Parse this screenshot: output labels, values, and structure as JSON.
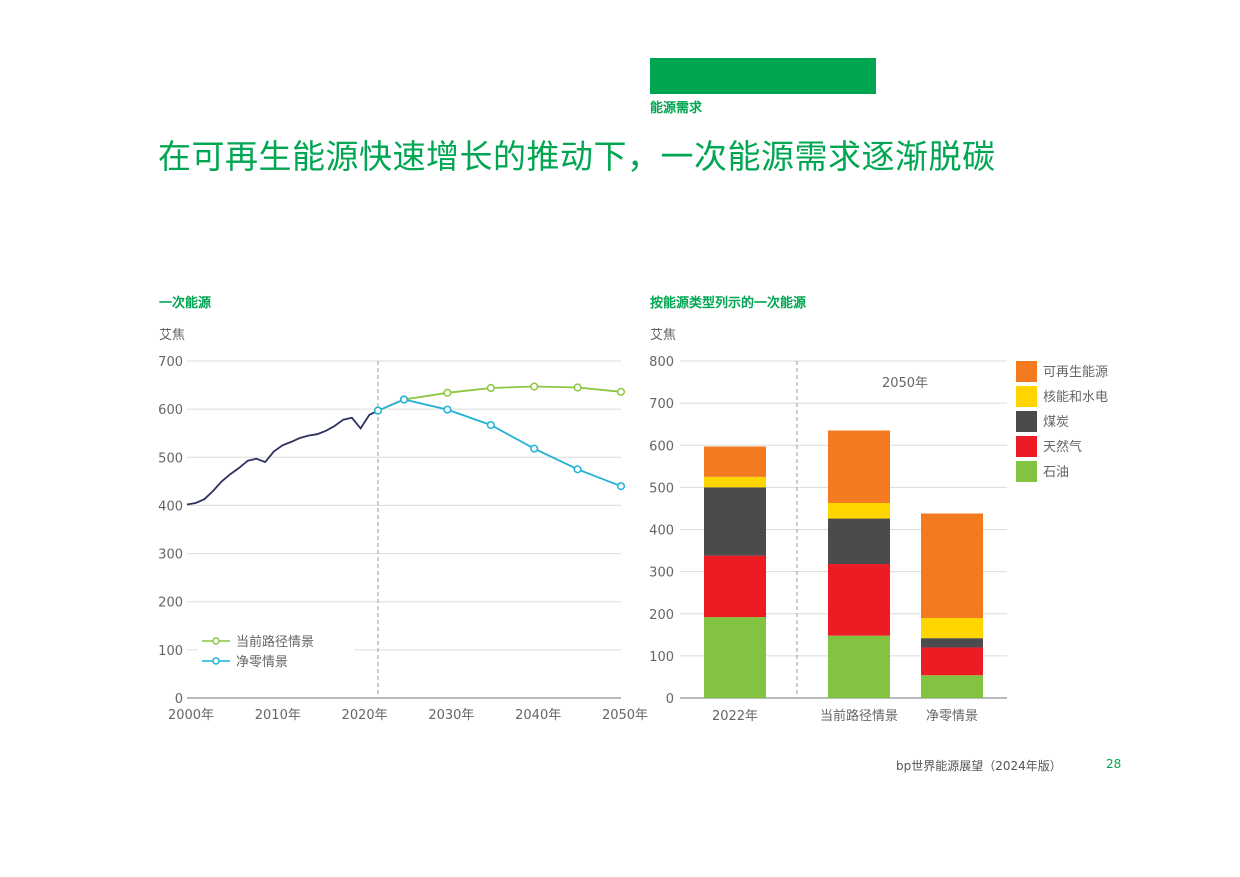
{
  "header": {
    "section": "能源需求",
    "title": "在可再生能源快速增长的推动下，一次能源需求逐渐脱碳"
  },
  "footer": {
    "source": "bp世界能源展望（2024年版）",
    "page": "28"
  },
  "colors": {
    "brand": "#00a651",
    "history": "#2e3162",
    "current": "#8dc63f",
    "netzero": "#1fb1d6",
    "renewables": "#f47a20",
    "nuclear_hydro": "#ffd500",
    "coal": "#4b4b4d",
    "gas": "#ed1c24",
    "oil": "#82c341"
  },
  "chart_data": [
    {
      "type": "line",
      "title": "一次能源",
      "ylabel": "艾焦",
      "ylim": [
        0,
        700
      ],
      "yticks": [
        0,
        100,
        200,
        300,
        400,
        500,
        600,
        700
      ],
      "xlim": [
        2000,
        2050
      ],
      "xticks": [
        "2000年",
        "2010年",
        "2020年",
        "2030年",
        "2040年",
        "2050年"
      ],
      "divider_x": 2022,
      "grid": true,
      "legend": "bottom-left",
      "history": {
        "x": [
          2000,
          2001,
          2002,
          2003,
          2004,
          2005,
          2006,
          2007,
          2008,
          2009,
          2010,
          2011,
          2012,
          2013,
          2014,
          2015,
          2016,
          2017,
          2018,
          2019,
          2020,
          2021,
          2022
        ],
        "y": [
          402,
          405,
          413,
          430,
          450,
          465,
          478,
          493,
          497,
          490,
          512,
          525,
          532,
          540,
          545,
          548,
          555,
          565,
          578,
          582,
          560,
          588,
          597
        ]
      },
      "series": [
        {
          "name": "当前路径情景",
          "x": [
            2022,
            2025,
            2030,
            2035,
            2040,
            2045,
            2050
          ],
          "y": [
            597,
            620,
            634,
            644,
            647,
            645,
            636
          ]
        },
        {
          "name": "净零情景",
          "x": [
            2022,
            2025,
            2030,
            2035,
            2040,
            2045,
            2050
          ],
          "y": [
            597,
            620,
            599,
            567,
            518,
            475,
            440
          ]
        }
      ]
    },
    {
      "type": "bar",
      "stacked": true,
      "title": "按能源类型列示的一次能源",
      "ylabel": "艾焦",
      "ylim": [
        0,
        800
      ],
      "yticks": [
        0,
        100,
        200,
        300,
        400,
        500,
        600,
        700,
        800
      ],
      "categories": [
        "2022年",
        "当前路径情景",
        "净零情景"
      ],
      "group_label": "2050年",
      "legend": "top-right",
      "series": [
        {
          "name": "石油",
          "values": [
            192,
            148,
            54
          ]
        },
        {
          "name": "天然气",
          "values": [
            146,
            170,
            66
          ]
        },
        {
          "name": "煤炭",
          "values": [
            162,
            108,
            22
          ]
        },
        {
          "name": "核能和水电",
          "values": [
            25,
            37,
            48
          ]
        },
        {
          "name": "可再生能源",
          "values": [
            72,
            172,
            248
          ]
        }
      ]
    }
  ]
}
